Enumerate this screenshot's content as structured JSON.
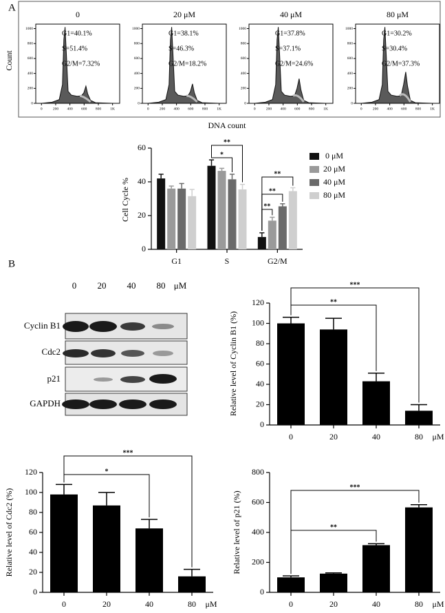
{
  "panel_labels": [
    "A",
    "B"
  ],
  "blot": {
    "lanes": [
      "0",
      "20",
      "40",
      "80"
    ],
    "unit": "μM",
    "rows": [
      "Cyclin B1",
      "Cdc2",
      "p21",
      "GAPDH"
    ]
  },
  "chart_data": [
    {
      "type": "flow",
      "xlabel": "DNA count",
      "ylabel": "Count",
      "xlim": [
        -80,
        1100
      ],
      "ylim": [
        0,
        1060
      ],
      "xticks": [
        0,
        200,
        400,
        600,
        800,
        {
          "value": 1000,
          "label": "1K"
        }
      ],
      "yticks": [
        0,
        200,
        400,
        600,
        800,
        1000
      ],
      "panels": [
        {
          "title": "0",
          "annotations": [
            "G1=40.1%",
            "S=51.4%",
            "G2/M=7.32%"
          ]
        },
        {
          "title": "20 μM",
          "annotations": [
            "G1=38.1%",
            "S=46.3%",
            "G2/M=18.2%"
          ]
        },
        {
          "title": "40 μM",
          "annotations": [
            "G1=37.8%",
            "S=37.1%",
            "G2/M=24.6%"
          ]
        },
        {
          "title": "80 μM",
          "annotations": [
            "G1=30.2%",
            "S=30.4%",
            "G2/M=37.3%"
          ]
        }
      ]
    },
    {
      "type": "bar",
      "ylabel": "Cell Cycle %",
      "categories": [
        "G1",
        "S",
        "G2/M"
      ],
      "series": [
        {
          "name": "0 μM",
          "color": "#111111",
          "values": [
            42,
            49.5,
            7.3
          ],
          "errors": [
            2.5,
            3.5,
            2.5
          ]
        },
        {
          "name": "20 μM",
          "color": "#9a9a9a",
          "values": [
            36,
            46.5,
            17
          ],
          "errors": [
            1.5,
            1.5,
            2
          ]
        },
        {
          "name": "40 μM",
          "color": "#6a6a6a",
          "values": [
            36,
            41.5,
            25.5
          ],
          "errors": [
            3,
            3,
            1.5
          ]
        },
        {
          "name": "80 μM",
          "color": "#cfcfcf",
          "values": [
            31.5,
            35.5,
            34.5
          ],
          "errors": [
            4,
            3,
            2
          ]
        }
      ],
      "ylim": [
        0,
        60
      ],
      "yticks": [
        0,
        20,
        40,
        60
      ],
      "legend": "upper right",
      "annotations": [
        "**",
        "*",
        "**",
        "**",
        "**"
      ]
    },
    {
      "type": "bar",
      "ylabel": "Relative level of Cyclin B1 (%)",
      "categories": [
        "0",
        "20",
        "40",
        "80"
      ],
      "x_unit": "μM",
      "values": [
        100,
        94,
        43,
        14
      ],
      "errors": [
        6,
        11,
        8,
        6
      ],
      "color": "#000000",
      "ylim": [
        0,
        120
      ],
      "yticks": [
        0,
        20,
        40,
        60,
        80,
        100,
        120
      ],
      "annotations": [
        "**",
        "***"
      ]
    },
    {
      "type": "bar",
      "ylabel": "Relative level of Cdc2 (%)",
      "categories": [
        "0",
        "20",
        "40",
        "80"
      ],
      "x_unit": "μM",
      "values": [
        98,
        87,
        64,
        16
      ],
      "errors": [
        10,
        13,
        9,
        7
      ],
      "color": "#000000",
      "ylim": [
        0,
        120
      ],
      "yticks": [
        0,
        20,
        40,
        60,
        80,
        100,
        120
      ],
      "annotations": [
        "*",
        "***"
      ]
    },
    {
      "type": "bar",
      "ylabel": "Relative level of p21 (%)",
      "categories": [
        "0",
        "20",
        "40",
        "80"
      ],
      "x_unit": "μM",
      "values": [
        100,
        125,
        315,
        567
      ],
      "errors": [
        10,
        5,
        10,
        18
      ],
      "color": "#000000",
      "ylim": [
        0,
        800
      ],
      "yticks": [
        0,
        200,
        400,
        600,
        800
      ],
      "annotations": [
        "**",
        "***"
      ]
    }
  ]
}
